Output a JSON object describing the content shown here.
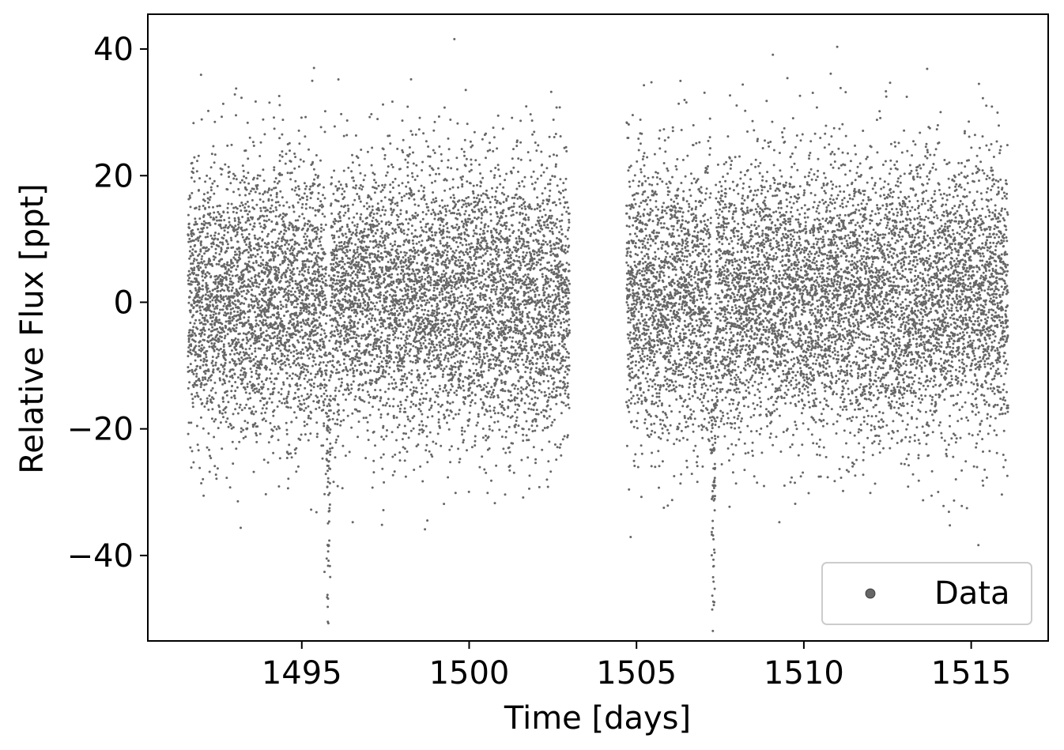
{
  "chart_data": {
    "type": "scatter",
    "title": "",
    "xlabel": "Time [days]",
    "ylabel": "Relative Flux [ppt]",
    "xlim": [
      1490.4,
      1517.3
    ],
    "ylim": [
      -53.5,
      45.5
    ],
    "xticks": [
      1495,
      1500,
      1505,
      1510,
      1515
    ],
    "xtick_labels": [
      "1495",
      "1500",
      "1505",
      "1510",
      "1515"
    ],
    "yticks": [
      -40,
      -20,
      0,
      20,
      40
    ],
    "ytick_labels": [
      "−40",
      "−20",
      "0",
      "20",
      "40"
    ],
    "grid": false,
    "legend": {
      "placement": "lower-right",
      "entries": [
        "Data"
      ]
    },
    "series": [
      {
        "name": "Data",
        "color": "#000000",
        "alpha": 0.6,
        "segments": [
          {
            "x_start": 1491.6,
            "x_end": 1503.0,
            "median": 0.5,
            "scatter_ppt": 11
          },
          {
            "x_start": 1504.7,
            "x_end": 1516.1,
            "median": 0.3,
            "scatter_ppt": 11
          }
        ],
        "transit_epochs": [
          1495.8,
          1507.3
        ],
        "transit_depth_ppt": 30,
        "transit_duration_days": 0.14,
        "cadence_days": 0.00139
      }
    ]
  }
}
